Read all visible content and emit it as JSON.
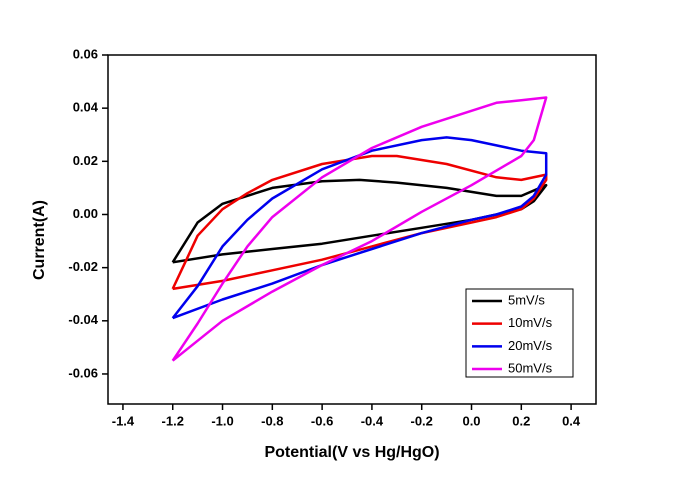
{
  "chart_data": {
    "type": "line",
    "x_label": "Potential(V vs Hg/HgO)",
    "y_label": "Current(A)",
    "xlim": [
      -1.46,
      0.5
    ],
    "ylim": [
      -0.0713,
      0.06
    ],
    "xticks": [
      -1.4,
      -1.2,
      {
        "value": -1.0,
        "label": "-1.0"
      },
      -0.8,
      -0.6,
      -0.4,
      -0.2,
      {
        "value": 0,
        "label": "0.0"
      },
      0.2,
      0.4
    ],
    "yticks": [
      -0.06,
      -0.04,
      -0.02,
      {
        "value": 0,
        "label": "0.00"
      },
      0.02,
      0.04,
      0.06
    ],
    "legend": "lower right",
    "series": [
      {
        "name": "5mV/s",
        "color": "#000000",
        "x": [
          -1.2,
          -1.1,
          -1.0,
          -0.8,
          -0.6,
          -0.45,
          -0.3,
          -0.1,
          0.1,
          0.2,
          0.3,
          0.25,
          0.2,
          0.1,
          0.0,
          -0.2,
          -0.4,
          -0.6,
          -0.8,
          -1.0,
          -1.2
        ],
        "values": [
          -0.018,
          -0.003,
          0.004,
          0.01,
          0.0125,
          0.013,
          0.012,
          0.01,
          0.007,
          0.007,
          0.011,
          0.005,
          0.002,
          0.0,
          -0.002,
          -0.005,
          -0.008,
          -0.011,
          -0.013,
          -0.015,
          -0.018
        ]
      },
      {
        "name": "10mV/s",
        "color": "#ee0000",
        "x": [
          -1.2,
          -1.15,
          -1.1,
          -1.0,
          -0.9,
          -0.8,
          -0.6,
          -0.4,
          -0.3,
          -0.1,
          0.1,
          0.2,
          0.3,
          0.3,
          0.25,
          0.2,
          0.1,
          0.0,
          -0.2,
          -0.4,
          -0.6,
          -0.8,
          -1.0,
          -1.2
        ],
        "values": [
          -0.028,
          -0.018,
          -0.008,
          0.002,
          0.008,
          0.013,
          0.019,
          0.022,
          0.022,
          0.019,
          0.014,
          0.013,
          0.015,
          0.013,
          0.006,
          0.002,
          -0.001,
          -0.003,
          -0.007,
          -0.012,
          -0.017,
          -0.021,
          -0.025,
          -0.028
        ]
      },
      {
        "name": "20mV/s",
        "color": "#0000ee",
        "x": [
          -1.2,
          -1.1,
          -1.0,
          -0.9,
          -0.8,
          -0.6,
          -0.4,
          -0.2,
          -0.1,
          0.0,
          0.1,
          0.2,
          0.3,
          0.3,
          0.25,
          0.2,
          0.1,
          0.0,
          -0.2,
          -0.4,
          -0.6,
          -0.8,
          -1.0,
          -1.2
        ],
        "values": [
          -0.039,
          -0.027,
          -0.012,
          -0.002,
          0.006,
          0.017,
          0.024,
          0.028,
          0.029,
          0.028,
          0.026,
          0.024,
          0.023,
          0.015,
          0.007,
          0.003,
          0.0,
          -0.002,
          -0.007,
          -0.013,
          -0.019,
          -0.026,
          -0.032,
          -0.039
        ]
      },
      {
        "name": "50mV/s",
        "color": "#ee00ee",
        "x": [
          -1.2,
          -1.1,
          -1.0,
          -0.9,
          -0.8,
          -0.6,
          -0.4,
          -0.2,
          0.0,
          0.1,
          0.2,
          0.3,
          0.25,
          0.2,
          0.0,
          -0.2,
          -0.4,
          -0.6,
          -0.8,
          -1.0,
          -1.2
        ],
        "values": [
          -0.055,
          -0.041,
          -0.026,
          -0.012,
          -0.001,
          0.014,
          0.025,
          0.033,
          0.039,
          0.042,
          0.043,
          0.044,
          0.028,
          0.022,
          0.011,
          0.001,
          -0.01,
          -0.019,
          -0.029,
          -0.04,
          -0.055
        ]
      }
    ]
  }
}
